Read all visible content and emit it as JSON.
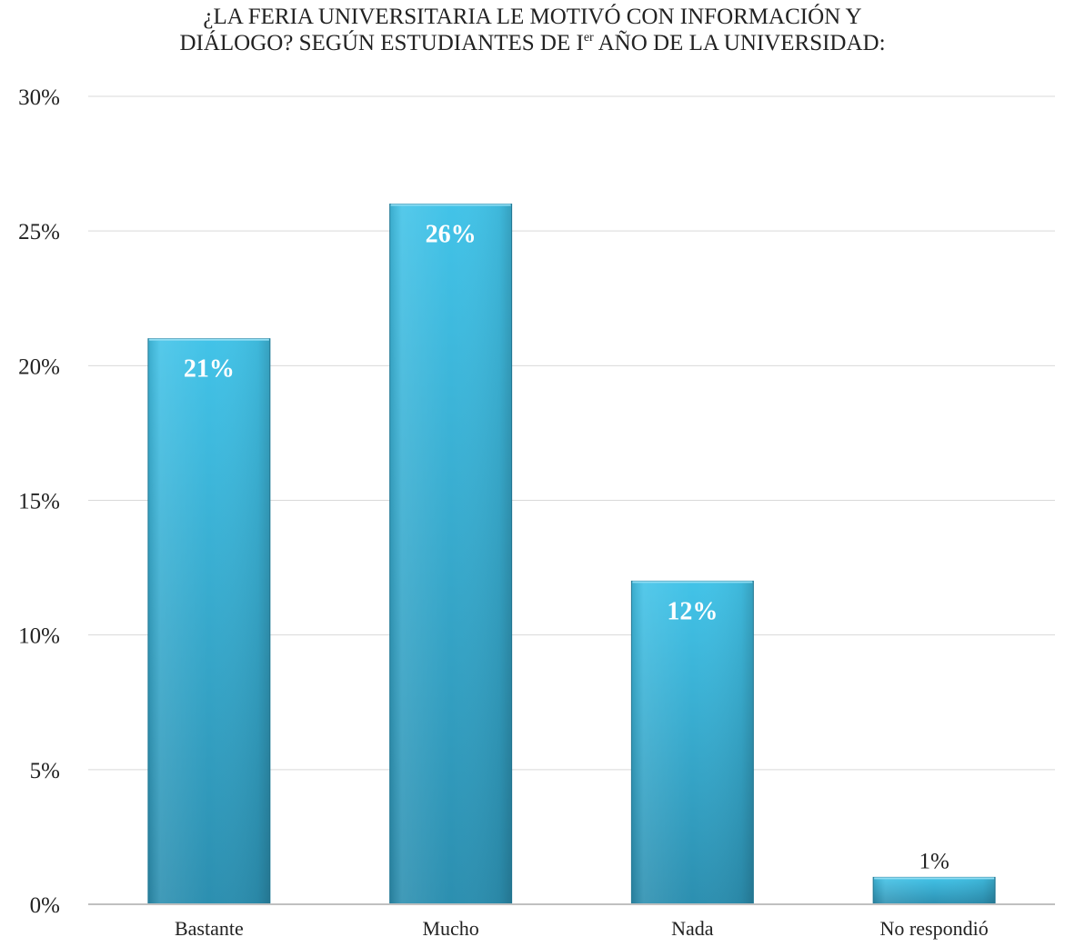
{
  "chart_data": {
    "type": "bar",
    "title": {
      "line1": "¿LA FERIA UNIVERSITARIA LE MOTIVÓ CON INFORMACIÓN Y",
      "line2_before_sup": "DIÁLOGO? SEGÚN ESTUDIANTES DE I",
      "line2_sup": "er",
      "line2_after_sup": " AÑO DE LA UNIVERSIDAD:"
    },
    "categories": [
      "Bastante",
      "Mucho",
      "Nada",
      "No respondió"
    ],
    "values": [
      21,
      26,
      12,
      1
    ],
    "data_labels": [
      "21%",
      "26%",
      "12%",
      "1%"
    ],
    "ylim": [
      0,
      30
    ],
    "y_ticks": [
      0,
      5,
      10,
      15,
      20,
      25,
      30
    ],
    "y_tick_labels": [
      "0%",
      "5%",
      "10%",
      "15%",
      "20%",
      "25%",
      "30%"
    ],
    "xlabel": "",
    "ylabel": "",
    "grid": true,
    "legend": "none",
    "colors": {
      "bar_top": "#42c3e8",
      "bar_bottom": "#2c8fb0",
      "bar_edge": "#26819f",
      "grid": "#d9d9d9",
      "axis": "#c0c0c0",
      "text": "#222222"
    }
  }
}
